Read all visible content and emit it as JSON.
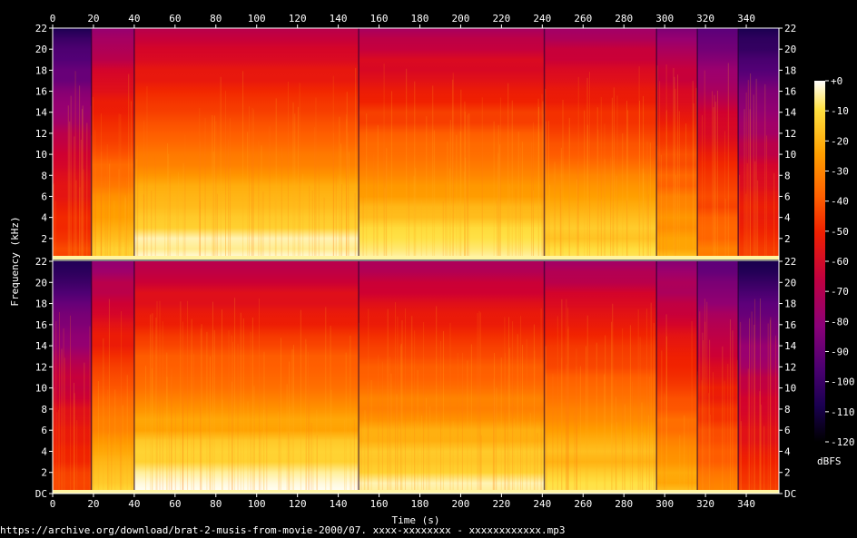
{
  "chart_data": {
    "type": "heatmap",
    "title": "",
    "xlabel": "Time (s)",
    "ylabel": "Frequency (kHz)",
    "x_ticks": [
      "0",
      "20",
      "40",
      "60",
      "80",
      "100",
      "120",
      "140",
      "160",
      "180",
      "200",
      "220",
      "240",
      "260",
      "280",
      "300",
      "320",
      "340"
    ],
    "xlim": [
      0,
      356
    ],
    "y_ticks_channel": [
      "DC",
      "2",
      "4",
      "6",
      "8",
      "10",
      "12",
      "14",
      "16",
      "18",
      "20",
      "22"
    ],
    "ylim_khz": [
      0,
      22
    ],
    "channels": 2,
    "colorbar": {
      "label": "dBFS",
      "ticks": [
        "+0",
        "-10",
        "-20",
        "-30",
        "-40",
        "-50",
        "-60",
        "-70",
        "-80",
        "-90",
        "-100",
        "-110",
        "-120"
      ],
      "range": [
        -120,
        0
      ],
      "colormap": [
        "#000000",
        "#1a0050",
        "#5a007a",
        "#9a0070",
        "#d00030",
        "#f02000",
        "#ff6000",
        "#ffa000",
        "#ffe040",
        "#ffffff"
      ]
    },
    "segments_s": [
      {
        "start": 0,
        "end": 19,
        "level": 0.32
      },
      {
        "start": 19,
        "end": 40,
        "level": 0.55
      },
      {
        "start": 40,
        "end": 150,
        "level": 0.62
      },
      {
        "start": 150,
        "end": 241,
        "level": 0.6
      },
      {
        "start": 241,
        "end": 296,
        "level": 0.58
      },
      {
        "start": 296,
        "end": 316,
        "level": 0.52
      },
      {
        "start": 316,
        "end": 336,
        "level": 0.42
      },
      {
        "start": 336,
        "end": 356,
        "level": 0.3
      }
    ]
  },
  "footer_text": "https://archive.org/download/brat-2-musis-from-movie-2000/07. xxxx-xxxxxxxx - xxxxxxxxxxxx.mp3"
}
